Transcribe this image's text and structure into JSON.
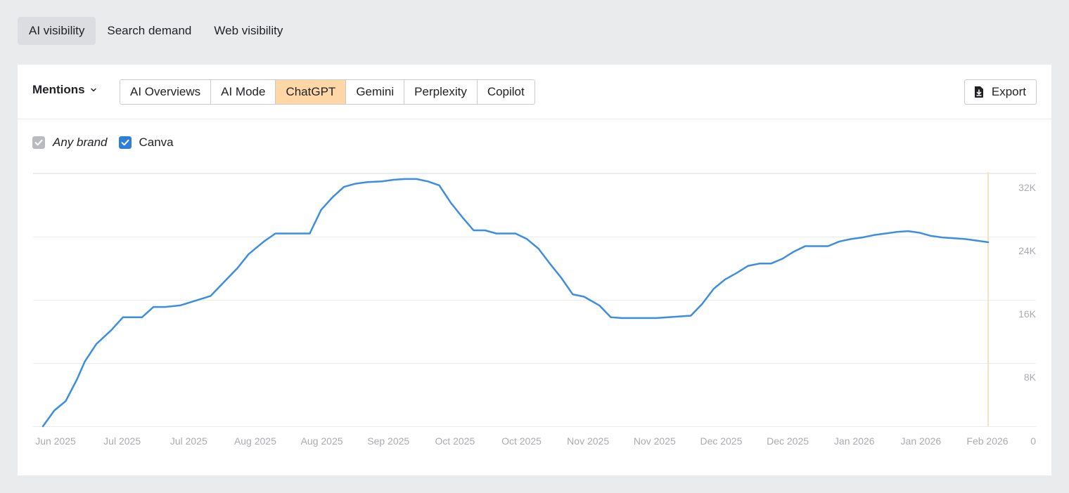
{
  "top_tabs": [
    {
      "label": "AI visibility",
      "active": true
    },
    {
      "label": "Search demand",
      "active": false
    },
    {
      "label": "Web visibility",
      "active": false
    }
  ],
  "toolbar": {
    "metric_label": "Mentions",
    "engines": [
      {
        "label": "AI Overviews",
        "active": false
      },
      {
        "label": "AI Mode",
        "active": false
      },
      {
        "label": "ChatGPT",
        "active": true
      },
      {
        "label": "Gemini",
        "active": false
      },
      {
        "label": "Perplexity",
        "active": false
      },
      {
        "label": "Copilot",
        "active": false
      }
    ],
    "export_label": "Export",
    "export_icon": "download-file-icon"
  },
  "legend": [
    {
      "label": "Any brand",
      "checked": true,
      "color": "#b9bbbf",
      "italic": true
    },
    {
      "label": "Canva",
      "checked": true,
      "color": "#2f7fd8",
      "italic": false
    }
  ],
  "colors": {
    "series": "#3d8ee0",
    "marker_line": "#f6e2c2",
    "grid": "#ebecee",
    "active_engine": "#ffd7a6"
  },
  "chart_data": {
    "type": "line",
    "x_tick_labels": [
      "Jun 2025",
      "Jul 2025",
      "Jul 2025",
      "Aug 2025",
      "Aug 2025",
      "Sep 2025",
      "Oct 2025",
      "Oct 2025",
      "Nov 2025",
      "Nov 2025",
      "Dec 2025",
      "Dec 2025",
      "Jan 2026",
      "Jan 2026",
      "Feb 2026"
    ],
    "y_ticks": [
      0,
      8000,
      16000,
      24000,
      32000
    ],
    "y_tick_labels": [
      "0",
      "8K",
      "16K",
      "24K",
      "32K"
    ],
    "ylim": [
      0,
      32000
    ],
    "y_axis_position": "right",
    "grid": true,
    "series": [
      {
        "name": "Canva",
        "x": [
          "2025-06-04",
          "2025-06-07",
          "2025-06-10",
          "2025-06-13",
          "2025-06-15",
          "2025-06-18",
          "2025-06-22",
          "2025-06-25",
          "2025-06-30",
          "2025-07-03",
          "2025-07-06",
          "2025-07-10",
          "2025-07-18",
          "2025-07-21",
          "2025-07-25",
          "2025-07-28",
          "2025-08-01",
          "2025-08-04",
          "2025-08-07",
          "2025-08-10",
          "2025-08-13",
          "2025-08-16",
          "2025-08-19",
          "2025-08-22",
          "2025-08-25",
          "2025-08-28",
          "2025-09-01",
          "2025-09-04",
          "2025-09-07",
          "2025-09-10",
          "2025-09-13",
          "2025-09-16",
          "2025-09-19",
          "2025-09-22",
          "2025-09-25",
          "2025-09-28",
          "2025-10-01",
          "2025-10-03",
          "2025-10-06",
          "2025-10-09",
          "2025-10-12",
          "2025-10-15",
          "2025-10-18",
          "2025-10-21",
          "2025-10-24",
          "2025-10-28",
          "2025-10-31",
          "2025-11-03",
          "2025-11-06",
          "2025-11-09",
          "2025-11-12",
          "2025-11-15",
          "2025-11-18",
          "2025-11-21",
          "2025-11-24",
          "2025-11-27",
          "2025-11-30",
          "2025-12-03",
          "2025-12-06",
          "2025-12-09",
          "2025-12-12",
          "2025-12-15",
          "2025-12-18",
          "2025-12-21",
          "2025-12-24",
          "2025-12-27",
          "2025-12-30",
          "2026-01-02",
          "2026-01-05",
          "2026-01-08",
          "2026-01-11",
          "2026-01-14",
          "2026-01-17",
          "2026-01-20",
          "2026-01-23",
          "2026-01-26",
          "2026-01-29",
          "2026-02-01",
          "2026-02-04",
          "2026-02-07"
        ],
        "y": [
          0,
          2000,
          3200,
          6000,
          8200,
          10400,
          12200,
          13800,
          13800,
          15100,
          15100,
          15300,
          16500,
          18000,
          20000,
          21800,
          23400,
          24400,
          24400,
          24400,
          24400,
          27400,
          29000,
          30300,
          30700,
          30900,
          31000,
          31200,
          31300,
          31300,
          31000,
          30500,
          28300,
          26500,
          24800,
          24800,
          24400,
          24400,
          24400,
          23700,
          22500,
          20600,
          18800,
          16700,
          16400,
          15300,
          13800,
          13700,
          13700,
          13700,
          13700,
          13800,
          13900,
          14000,
          15500,
          17400,
          18600,
          19400,
          20300,
          20600,
          20600,
          21200,
          22100,
          22800,
          22800,
          22800,
          23400,
          23700,
          23900,
          24200,
          24400,
          24600,
          24700,
          24500,
          24100,
          23900,
          23800,
          23700,
          23500,
          23300
        ]
      }
    ]
  }
}
